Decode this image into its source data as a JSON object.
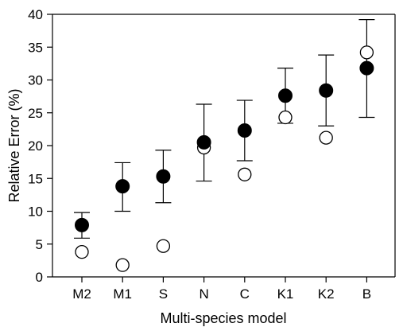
{
  "chart_data": {
    "type": "scatter",
    "title": "",
    "xlabel": "Multi-species model",
    "ylabel": "Relative Error (%)",
    "categories": [
      "M2",
      "M1",
      "S",
      "N",
      "C",
      "K1",
      "K2",
      "B"
    ],
    "ylim": [
      0,
      40
    ],
    "yticks": [
      0,
      5,
      10,
      15,
      20,
      25,
      30,
      35,
      40
    ],
    "grid": false,
    "series": [
      {
        "marker": "filled-circle",
        "color": "#000000",
        "values": [
          7.9,
          13.8,
          15.3,
          20.5,
          22.3,
          27.6,
          28.4,
          31.8
        ],
        "error_low": [
          5.9,
          10.0,
          11.3,
          14.6,
          17.7,
          23.4,
          23.0,
          24.3
        ],
        "error_high": [
          9.8,
          17.4,
          19.3,
          26.3,
          26.9,
          31.8,
          33.8,
          39.2
        ]
      },
      {
        "marker": "open-circle",
        "color": "#000000",
        "values": [
          3.8,
          1.8,
          4.7,
          19.7,
          15.6,
          24.3,
          21.2,
          34.2
        ]
      }
    ]
  }
}
